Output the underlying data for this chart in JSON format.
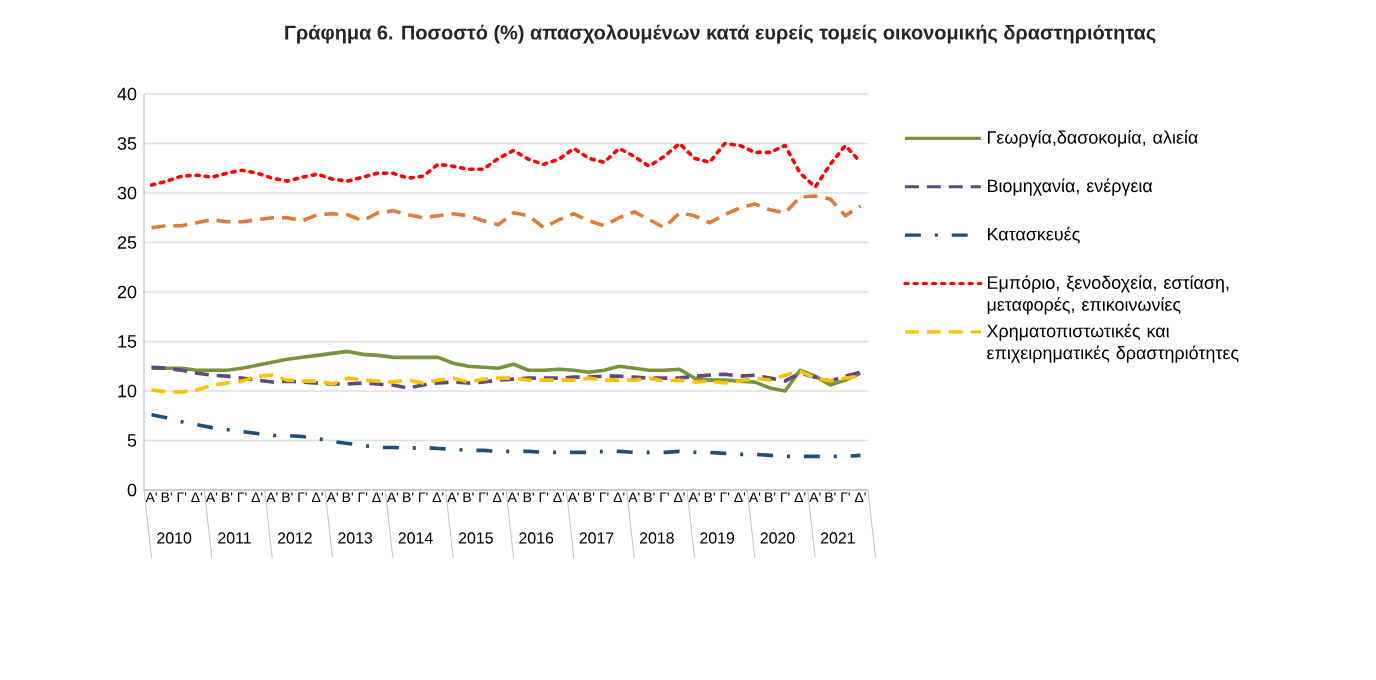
{
  "chart_data": {
    "type": "line",
    "title": "Γράφημα 6. Ποσοστό (%) απασχολουμένων κατά ευρείς τομείς οικονομικής δραστηριότητας",
    "categories": [
      "Α'",
      "Β'",
      "Γ'",
      "Δ'",
      "Α'",
      "Β'",
      "Γ'",
      "Δ'",
      "Α'",
      "Β'",
      "Γ'",
      "Δ'",
      "Α'",
      "Β'",
      "Γ'",
      "Δ'",
      "Α'",
      "Β'",
      "Γ'",
      "Δ'",
      "Α'",
      "Β'",
      "Γ'",
      "Δ'",
      "Α'",
      "Β'",
      "Γ'",
      "Δ'",
      "Α'",
      "Β'",
      "Γ'",
      "Δ'",
      "Α'",
      "Β'",
      "Γ'",
      "Δ'",
      "Α'",
      "Β'",
      "Γ'",
      "Δ'",
      "Α'",
      "Β'",
      "Γ'",
      "Δ'",
      "Α'",
      "Β'",
      "Γ'",
      "Δ'"
    ],
    "annotations": [
      "2010",
      "2011",
      "2012",
      "2013",
      "2014",
      "2015",
      "2016",
      "2017",
      "2018",
      "2019",
      "2020",
      "2021"
    ],
    "series": [
      {
        "name": "Γεωργία,δασοκομία, αλιεία",
        "color": "#77933c",
        "line_style": "solid",
        "values": [
          12.3,
          12.3,
          12.3,
          12.1,
          12.1,
          12.1,
          12.3,
          12.6,
          12.9,
          13.2,
          13.4,
          13.6,
          13.8,
          14.0,
          13.7,
          13.6,
          13.4,
          13.4,
          13.4,
          13.4,
          12.8,
          12.5,
          12.4,
          12.3,
          12.7,
          12.1,
          12.1,
          12.2,
          12.1,
          11.9,
          12.1,
          12.5,
          12.3,
          12.1,
          12.1,
          12.2,
          11.3,
          11.1,
          11.1,
          11.0,
          10.9,
          10.3,
          10.0,
          12.1,
          11.5,
          10.6,
          11.1,
          11.8
        ]
      },
      {
        "name": "Βιομηχανία, ενέργεια",
        "color": "#604a7b",
        "line_style": "dashed",
        "values": [
          12.4,
          12.3,
          12.1,
          11.8,
          11.6,
          11.5,
          11.3,
          11.1,
          10.9,
          11.0,
          10.9,
          10.8,
          10.7,
          10.7,
          10.8,
          10.7,
          10.6,
          10.3,
          10.6,
          10.8,
          10.9,
          10.8,
          10.9,
          11.1,
          11.2,
          11.3,
          11.3,
          11.3,
          11.4,
          11.4,
          11.5,
          11.5,
          11.4,
          11.3,
          11.3,
          11.3,
          11.5,
          11.6,
          11.7,
          11.5,
          11.6,
          11.3,
          11.0,
          11.8,
          11.4,
          11.0,
          11.5,
          11.9
        ]
      },
      {
        "name": "Κατασκευές",
        "color": "#1f4e79",
        "line_style": "dashdot",
        "values": [
          7.6,
          7.3,
          6.9,
          6.6,
          6.3,
          6.1,
          5.9,
          5.7,
          5.5,
          5.5,
          5.4,
          5.2,
          4.9,
          4.7,
          4.5,
          4.3,
          4.3,
          4.2,
          4.3,
          4.2,
          4.1,
          4.0,
          4.0,
          3.9,
          3.9,
          3.9,
          3.8,
          3.8,
          3.8,
          3.8,
          3.9,
          3.9,
          3.8,
          3.8,
          3.8,
          3.9,
          3.8,
          3.8,
          3.7,
          3.6,
          3.6,
          3.5,
          3.4,
          3.4,
          3.4,
          3.4,
          3.4,
          3.5
        ]
      },
      {
        "name": "Εμπόριο, ξενοδοχεία, εστίαση, μεταφορές, επικοινωνίες",
        "color": "#ff0000",
        "line_style": "dotted",
        "values": [
          30.8,
          31.2,
          31.7,
          31.8,
          31.6,
          32.0,
          32.3,
          32.0,
          31.5,
          31.2,
          31.6,
          31.9,
          31.4,
          31.2,
          31.6,
          32.0,
          32.0,
          31.5,
          31.7,
          32.9,
          32.7,
          32.4,
          32.4,
          33.5,
          34.3,
          33.4,
          32.9,
          33.4,
          34.5,
          33.5,
          33.1,
          34.5,
          33.7,
          32.7,
          33.7,
          35.0,
          33.5,
          33.1,
          35.0,
          34.8,
          34.1,
          34.1,
          34.8,
          32.0,
          30.6,
          32.9,
          34.8,
          33.1
        ]
      },
      {
        "name": "Χρηματοπιστωτικές και επιχειρηματικές δραστηριότητες",
        "color": "#ffc000",
        "line_style": "dashed",
        "values": [
          10.1,
          9.9,
          9.9,
          10.1,
          10.6,
          10.8,
          11.0,
          11.5,
          11.6,
          11.1,
          11.0,
          11.0,
          10.7,
          11.3,
          11.1,
          11.0,
          10.9,
          11.1,
          10.8,
          11.1,
          11.3,
          10.9,
          11.2,
          11.3,
          11.3,
          11.1,
          11.1,
          11.1,
          11.1,
          11.3,
          11.1,
          11.1,
          11.1,
          11.3,
          11.0,
          11.1,
          10.9,
          11.0,
          10.8,
          11.0,
          11.3,
          11.1,
          11.6,
          12.0,
          11.3,
          11.0,
          11.3,
          11.5
        ]
      },
      {
        "color": "#e07b39",
        "line_style": "dashed",
        "values": [
          26.5,
          26.7,
          26.7,
          27.0,
          27.3,
          27.1,
          27.1,
          27.3,
          27.5,
          27.5,
          27.2,
          27.8,
          27.9,
          27.8,
          27.2,
          28.0,
          28.2,
          27.8,
          27.5,
          27.7,
          27.9,
          27.7,
          27.2,
          26.8,
          28.0,
          27.7,
          26.5,
          27.3,
          27.9,
          27.2,
          26.7,
          27.5,
          28.1,
          27.3,
          26.5,
          28.0,
          27.7,
          27.0,
          27.8,
          28.5,
          28.9,
          28.3,
          28.0,
          29.6,
          29.7,
          29.4,
          27.7,
          28.7
        ]
      }
    ],
    "ylim": [
      0,
      40
    ],
    "yticks": [
      0,
      5,
      10,
      15,
      20,
      25,
      30,
      35,
      40
    ],
    "grid": "y",
    "legend": "right"
  }
}
